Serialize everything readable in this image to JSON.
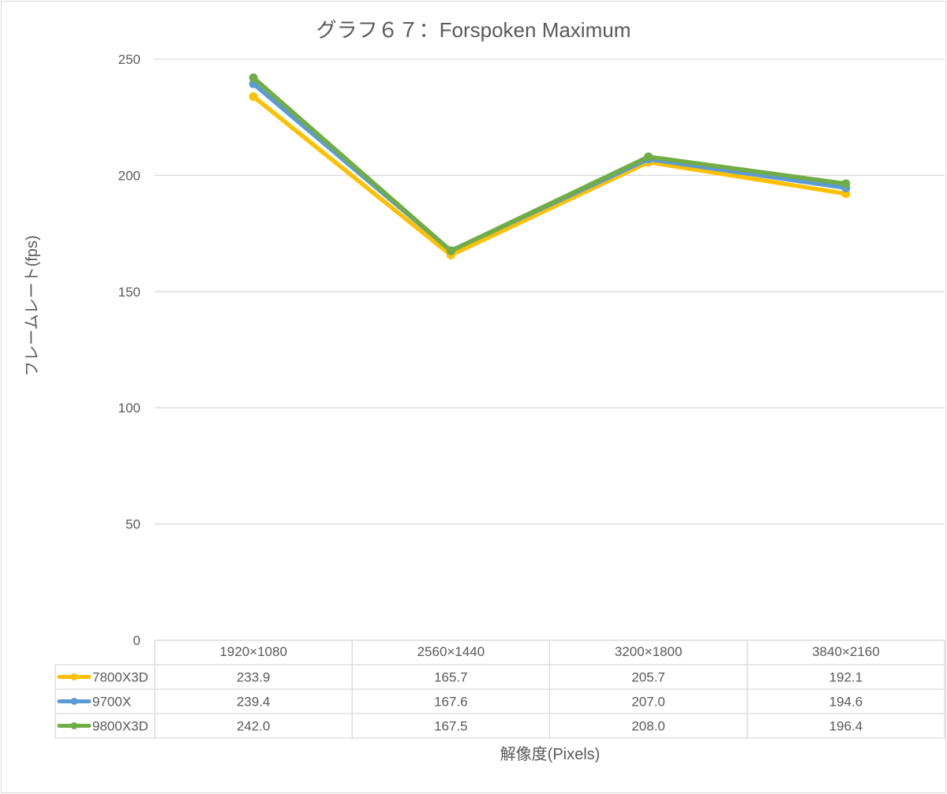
{
  "chart_data": {
    "type": "line",
    "title": "グラフ６７：Forspoken Maximum",
    "xlabel": "解像度(Pixels)",
    "ylabel": "フレームレート(fps)",
    "categories": [
      "1920×1080",
      "2560×1440",
      "3200×1800",
      "3840×2160"
    ],
    "ylim": [
      0,
      250
    ],
    "yticks": [
      0,
      50,
      100,
      150,
      200,
      250
    ],
    "grid": true,
    "legend": "data-table",
    "series": [
      {
        "name": "7800X3D",
        "color": "#ffc000",
        "values": [
          233.9,
          165.7,
          205.7,
          192.1
        ],
        "labels": [
          "233.9",
          "165.7",
          "205.7",
          "192.1"
        ]
      },
      {
        "name": "9700X",
        "color": "#5b9bd5",
        "values": [
          239.4,
          167.6,
          207.0,
          194.6
        ],
        "labels": [
          "239.4",
          "167.6",
          "207.0",
          "194.6"
        ]
      },
      {
        "name": "9800X3D",
        "color": "#70ad47",
        "values": [
          242.0,
          167.5,
          208.0,
          196.4
        ],
        "labels": [
          "242.0",
          "167.5",
          "208.0",
          "196.4"
        ]
      }
    ]
  }
}
